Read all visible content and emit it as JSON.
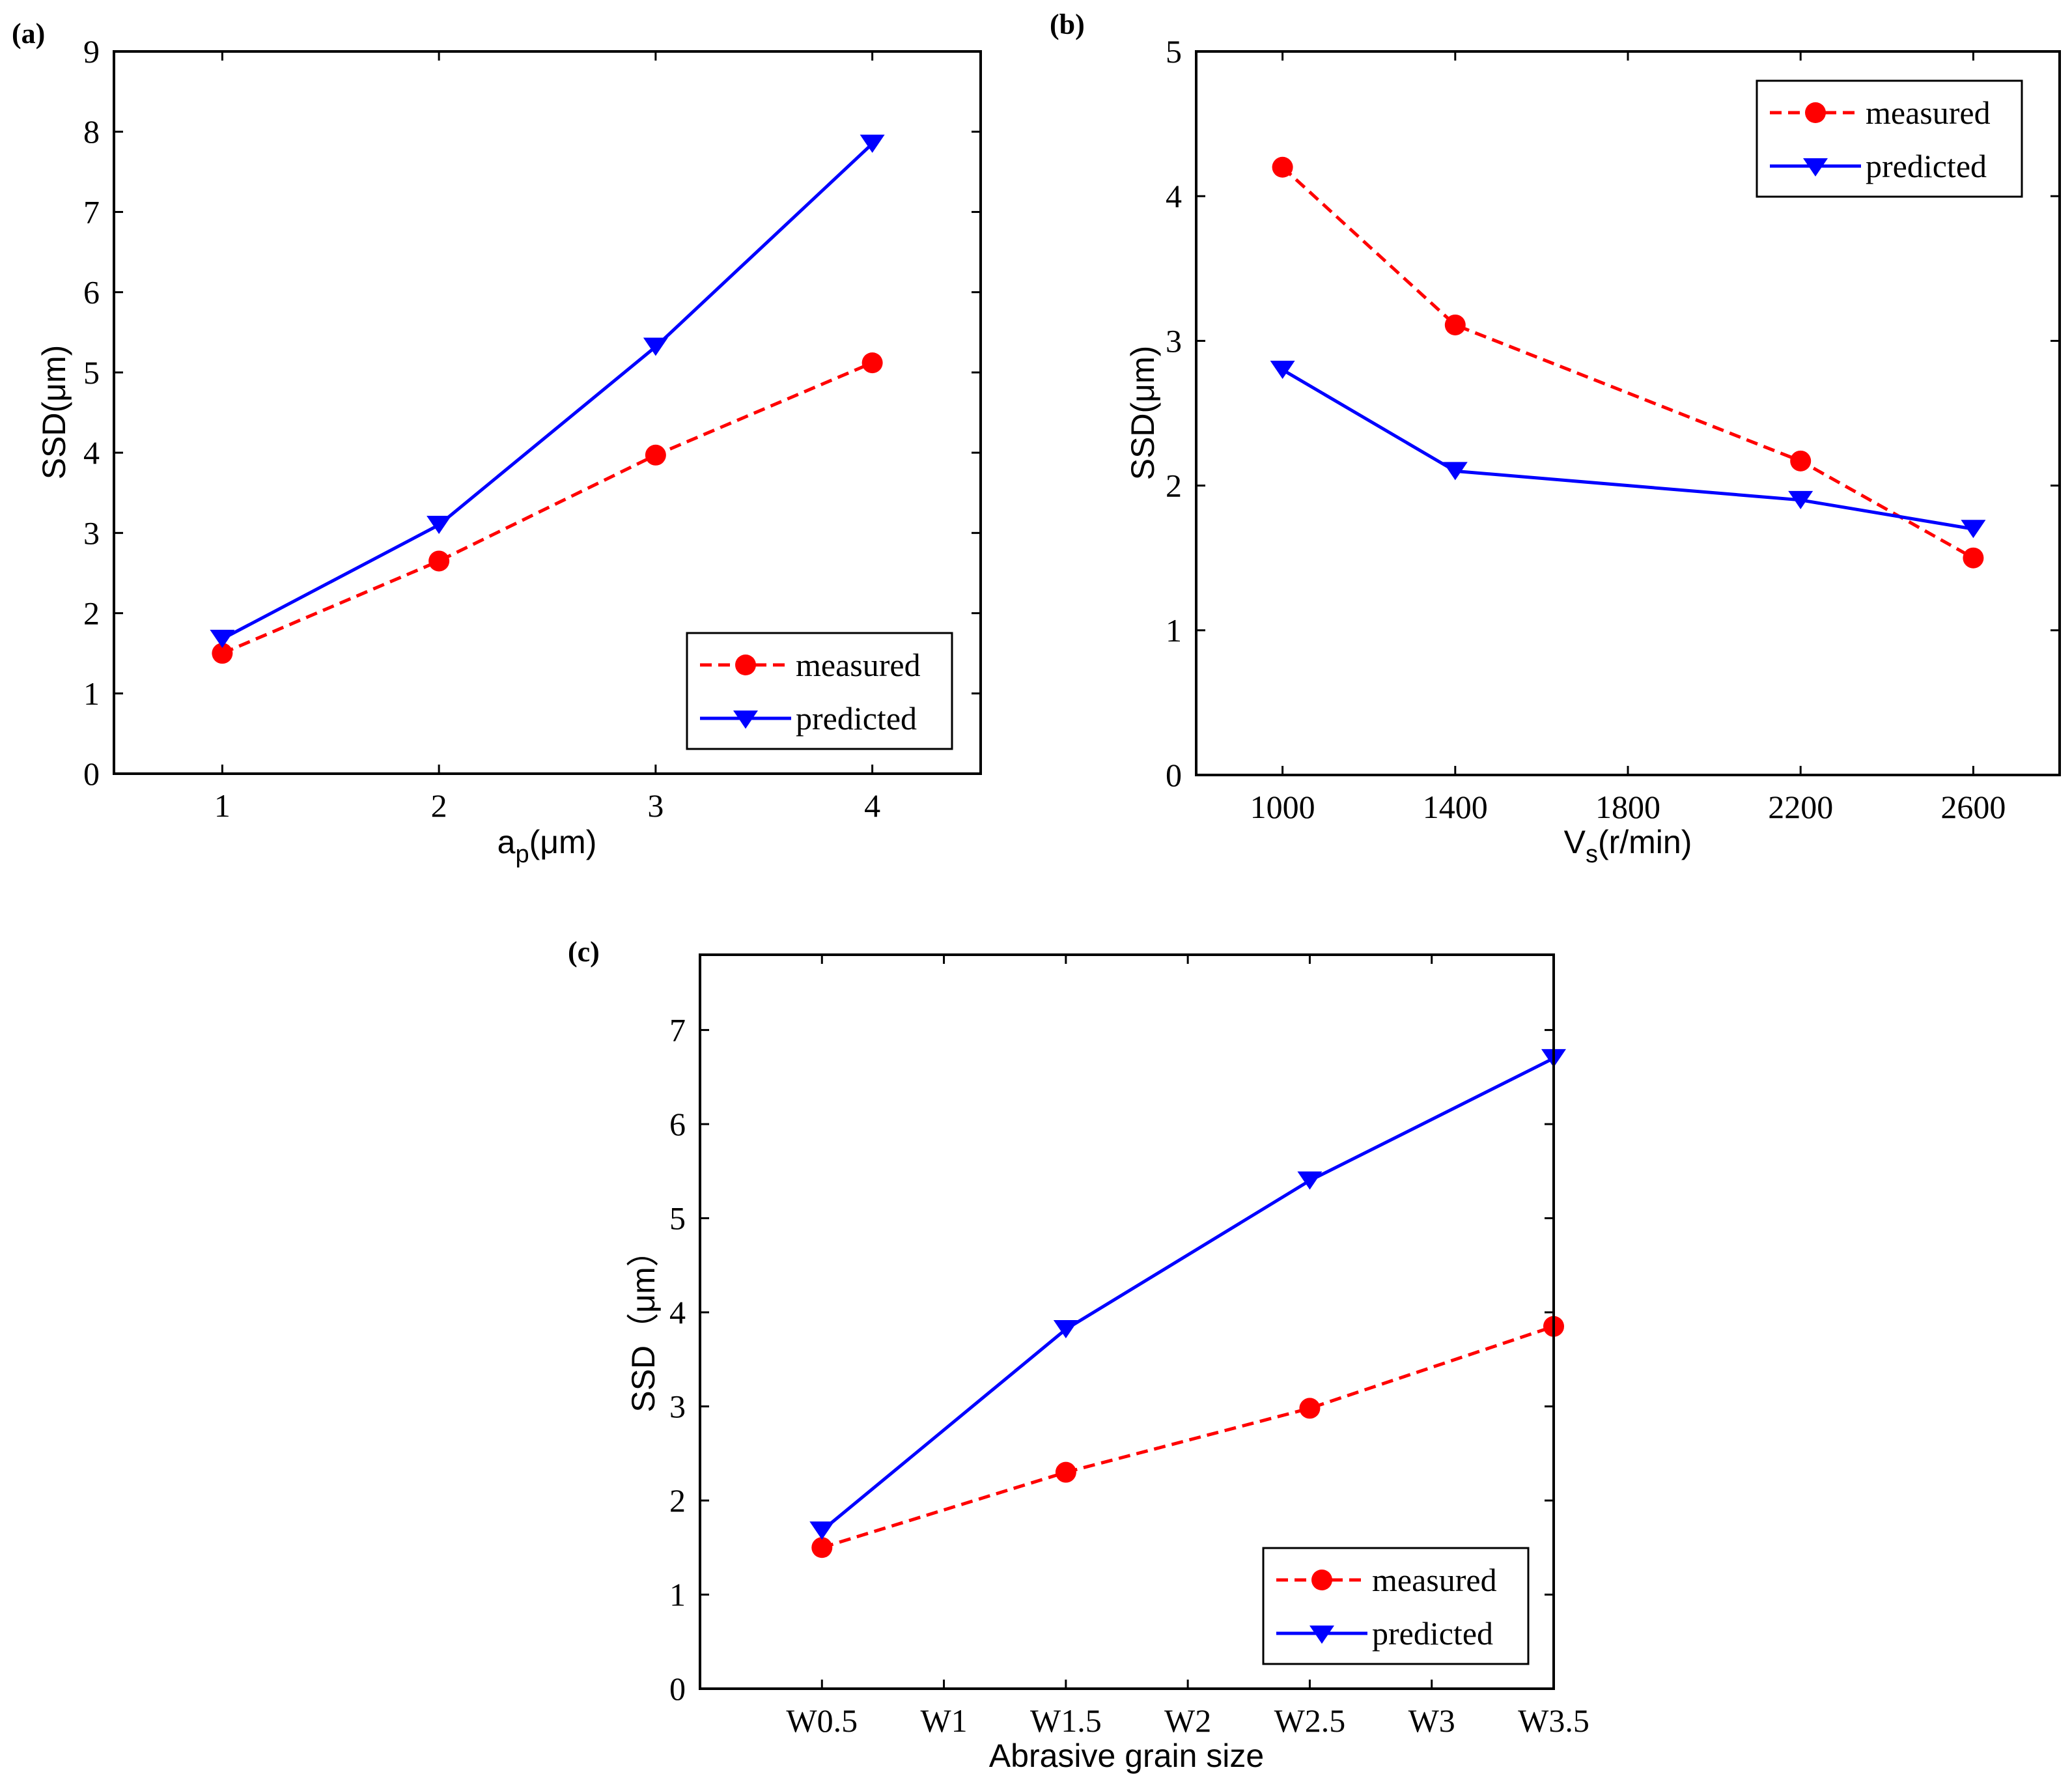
{
  "figure": {
    "panels": [
      {
        "label": "(a)"
      },
      {
        "label": "(b)"
      },
      {
        "label": "(c)"
      }
    ]
  },
  "legend": {
    "measured": "measured",
    "predicted": "predicted"
  },
  "colors": {
    "measured": "#ff0000",
    "predicted": "#0000ff"
  },
  "chart_data": [
    {
      "panel": "(a)",
      "type": "line",
      "ylabel": "SSD(μm)",
      "xlabel": {
        "main": "a",
        "sub": "p",
        "rest": "(μm)"
      },
      "xlim": [
        0.5,
        4.5
      ],
      "ylim": [
        0,
        9
      ],
      "x_ticks": [
        1,
        2,
        3,
        4
      ],
      "y_ticks": [
        0,
        1,
        2,
        3,
        4,
        5,
        6,
        7,
        8,
        9
      ],
      "x": [
        1,
        2,
        3,
        4
      ],
      "series": [
        {
          "name": "measured",
          "style": "dashed",
          "marker": "circle",
          "values": [
            1.5,
            2.65,
            3.97,
            5.12
          ]
        },
        {
          "name": "predicted",
          "style": "solid",
          "marker": "triangle-down",
          "values": [
            1.68,
            3.1,
            5.32,
            7.85
          ]
        }
      ],
      "legend_position": "bottom-right"
    },
    {
      "panel": "(b)",
      "type": "line",
      "ylabel": "SSD(μm)",
      "xlabel": {
        "main": "V",
        "sub": "s",
        "rest": "(r/min)"
      },
      "xlim": [
        800,
        2800
      ],
      "ylim": [
        0,
        5
      ],
      "x_ticks": [
        1000,
        1400,
        1800,
        2200,
        2600
      ],
      "y_ticks": [
        0,
        1,
        2,
        3,
        4,
        5
      ],
      "x": [
        1000,
        1400,
        2200,
        2600
      ],
      "series": [
        {
          "name": "measured",
          "style": "dashed",
          "marker": "circle",
          "values": [
            4.2,
            3.11,
            2.17,
            1.5
          ]
        },
        {
          "name": "predicted",
          "style": "solid",
          "marker": "triangle-down",
          "values": [
            2.8,
            2.1,
            1.9,
            1.7
          ]
        }
      ],
      "legend_position": "top-right"
    },
    {
      "panel": "(c)",
      "type": "line",
      "ylabel": "SSD（μm）",
      "xlabel": {
        "main": "Abrasive grain size",
        "sub": "",
        "rest": ""
      },
      "xlim": [
        0,
        7
      ],
      "ylim": [
        0,
        7.8
      ],
      "x_ticks": [
        1,
        2,
        3,
        4,
        5,
        6,
        7
      ],
      "x_tick_labels": [
        "W0.5",
        "W1",
        "W1.5",
        "W2",
        "W2.5",
        "W3",
        "W3.5"
      ],
      "y_ticks": [
        0,
        1,
        2,
        3,
        4,
        5,
        6,
        7
      ],
      "x": [
        1,
        3,
        5,
        7
      ],
      "categories": [
        "W0.5",
        "W1.5",
        "W2.5",
        "W3.5"
      ],
      "series": [
        {
          "name": "measured",
          "style": "dashed",
          "marker": "circle",
          "values": [
            1.5,
            2.3,
            2.98,
            3.85
          ]
        },
        {
          "name": "predicted",
          "style": "solid",
          "marker": "triangle-down",
          "values": [
            1.68,
            3.82,
            5.4,
            6.7
          ]
        }
      ],
      "legend_position": "bottom-right"
    }
  ]
}
